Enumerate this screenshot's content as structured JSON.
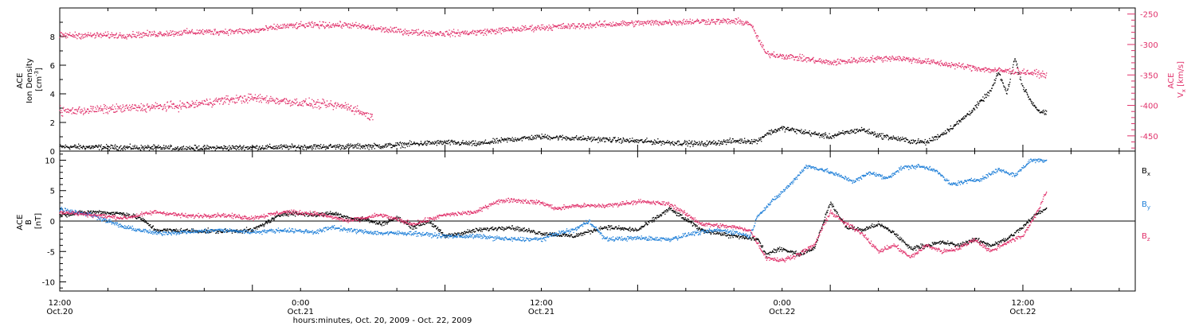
{
  "colors": {
    "black": "#000000",
    "blue": "#1f7fd8",
    "red": "#e0306a"
  },
  "chart_data": [
    {
      "type": "scatter",
      "panel": "top",
      "left_axis": {
        "label_lines": [
          "ACE",
          "Ion Density"
        ],
        "unit_prefix": "[cm",
        "unit_sup": "-3",
        "unit_suffix": "]",
        "ylim": [
          0,
          10
        ],
        "ticks": [
          "0",
          "2",
          "4",
          "6",
          "8"
        ]
      },
      "right_axis": {
        "label_lines": [
          "ACE"
        ],
        "sym": "V",
        "sym_sub": "x",
        "unit": " [km/s]",
        "ylim": [
          -475,
          -240
        ],
        "ticks": [
          "-250",
          "-300",
          "-350",
          "-400",
          "-450"
        ],
        "tick_values": [
          -250,
          -300,
          -350,
          -400,
          -450
        ],
        "color": "#e0306a"
      },
      "series": [
        {
          "axis": "left",
          "color": "#000000",
          "spread": 0.18,
          "points": [
            [
              0,
              0.3
            ],
            [
              4,
              0.25
            ],
            [
              8,
              0.2
            ],
            [
              12,
              0.25
            ],
            [
              16,
              0.3
            ],
            [
              20,
              0.35
            ],
            [
              22,
              0.5
            ],
            [
              24,
              0.6
            ],
            [
              26,
              0.5
            ],
            [
              28,
              0.8
            ],
            [
              30,
              1.0
            ],
            [
              32,
              0.9
            ],
            [
              34,
              0.8
            ],
            [
              36,
              0.7
            ],
            [
              38,
              0.6
            ],
            [
              40,
              0.5
            ],
            [
              42,
              0.7
            ],
            [
              43.5,
              0.7
            ],
            [
              44,
              1.2
            ],
            [
              45,
              1.6
            ],
            [
              46,
              1.4
            ],
            [
              47,
              1.2
            ],
            [
              48,
              1.0
            ],
            [
              49,
              1.3
            ],
            [
              50,
              1.5
            ],
            [
              51,
              1.1
            ],
            [
              52,
              0.9
            ],
            [
              53,
              0.7
            ],
            [
              54,
              0.6
            ],
            [
              55,
              1.2
            ],
            [
              56,
              2.0
            ],
            [
              57,
              3.0
            ],
            [
              58,
              4.2
            ],
            [
              58.5,
              5.5
            ],
            [
              59,
              4.0
            ],
            [
              59.5,
              6.5
            ],
            [
              60,
              4.5
            ],
            [
              60.5,
              3.5
            ],
            [
              61,
              2.8
            ],
            [
              61.5,
              2.6
            ]
          ]
        },
        {
          "axis": "right",
          "color": "#e0306a",
          "spread": 5,
          "points": [
            [
              0,
              -285
            ],
            [
              4,
              -285
            ],
            [
              8,
              -280
            ],
            [
              12,
              -278
            ],
            [
              14,
              -270
            ],
            [
              16,
              -268
            ],
            [
              18,
              -268
            ],
            [
              20,
              -275
            ],
            [
              22,
              -280
            ],
            [
              24,
              -282
            ],
            [
              26,
              -280
            ],
            [
              28,
              -276
            ],
            [
              30,
              -272
            ],
            [
              32,
              -270
            ],
            [
              34,
              -267
            ],
            [
              36,
              -265
            ],
            [
              40,
              -262
            ],
            [
              42,
              -262
            ],
            [
              43,
              -265
            ],
            [
              43.3,
              -280
            ],
            [
              44,
              -315
            ],
            [
              46,
              -322
            ],
            [
              48,
              -330
            ],
            [
              50,
              -325
            ],
            [
              52,
              -322
            ],
            [
              54,
              -328
            ],
            [
              56,
              -335
            ],
            [
              58,
              -342
            ],
            [
              60,
              -345
            ],
            [
              61.5,
              -350
            ]
          ]
        },
        {
          "axis": "right",
          "color": "#e0306a",
          "spread": 7,
          "points": [
            [
              0,
              -410
            ],
            [
              4,
              -405
            ],
            [
              8,
              -400
            ],
            [
              10,
              -392
            ],
            [
              12,
              -388
            ],
            [
              14,
              -393
            ],
            [
              16,
              -398
            ],
            [
              18,
              -402
            ],
            [
              19.5,
              -420
            ]
          ]
        }
      ]
    },
    {
      "type": "scatter",
      "panel": "bottom",
      "left_axis": {
        "label_lines": [
          "ACE",
          "B"
        ],
        "unit": "[nT]",
        "ylim": [
          -11.5,
          11.5
        ],
        "ticks": [
          "10",
          "5",
          "0",
          "-5",
          "-10"
        ],
        "tick_values": [
          10,
          5,
          0,
          -5,
          -10
        ]
      },
      "x_axis": {
        "xlim": [
          0,
          67
        ],
        "tick_labels": [
          {
            "x": 0,
            "top": "12:00",
            "bottom": "Oct.20"
          },
          {
            "x": 15,
            "top": "0:00",
            "bottom": "Oct.21"
          },
          {
            "x": 30,
            "top": "12:00",
            "bottom": "Oct.21"
          },
          {
            "x": 45,
            "top": "0:00",
            "bottom": "Oct.22"
          },
          {
            "x": 60,
            "top": "12:00",
            "bottom": "Oct.22"
          }
        ],
        "label": "hours:minutes, Oct. 20, 2009 - Oct. 22, 2009"
      },
      "legend": [
        {
          "sym": "B",
          "sub": "x",
          "color": "#000000"
        },
        {
          "sym": "B",
          "sub": "y",
          "color": "#1f7fd8"
        },
        {
          "sym": "B",
          "sub": "z",
          "color": "#e0306a"
        }
      ],
      "series": [
        {
          "color": "#000000",
          "spread": 0.35,
          "points": [
            [
              0,
              1
            ],
            [
              2,
              1.5
            ],
            [
              4,
              1.2
            ],
            [
              5,
              0.5
            ],
            [
              6,
              -1.5
            ],
            [
              8,
              -1.6
            ],
            [
              10,
              -1.7
            ],
            [
              12,
              -1.5
            ],
            [
              14,
              1.3
            ],
            [
              16,
              1.0
            ],
            [
              17,
              1.3
            ],
            [
              18,
              0.5
            ],
            [
              19,
              0.3
            ],
            [
              20,
              -0.5
            ],
            [
              21,
              0.5
            ],
            [
              22,
              -1.0
            ],
            [
              23,
              0.0
            ],
            [
              24,
              -2.5
            ],
            [
              26,
              -1.5
            ],
            [
              28,
              -1.0
            ],
            [
              30,
              -2.0
            ],
            [
              32,
              -2.5
            ],
            [
              34,
              -1.0
            ],
            [
              36,
              -1.5
            ],
            [
              38,
              2.0
            ],
            [
              40,
              -1.5
            ],
            [
              42,
              -2.5
            ],
            [
              43.5,
              -3.0
            ],
            [
              44,
              -5.5
            ],
            [
              45,
              -4.5
            ],
            [
              46,
              -5.5
            ],
            [
              47,
              -4.5
            ],
            [
              48,
              3.0
            ],
            [
              49,
              -1.0
            ],
            [
              50,
              -1.5
            ],
            [
              51,
              -0.5
            ],
            [
              52,
              -2.0
            ],
            [
              53,
              -4.5
            ],
            [
              54,
              -4.0
            ],
            [
              55,
              -3.5
            ],
            [
              56,
              -4.0
            ],
            [
              57,
              -3.0
            ],
            [
              58,
              -4.0
            ],
            [
              59,
              -3.0
            ],
            [
              60,
              -1.0
            ],
            [
              61,
              1.5
            ],
            [
              61.5,
              2.0
            ]
          ]
        },
        {
          "color": "#1f7fd8",
          "spread": 0.35,
          "points": [
            [
              0,
              2.0
            ],
            [
              2,
              1.0
            ],
            [
              4,
              -1.0
            ],
            [
              6,
              -2.0
            ],
            [
              8,
              -1.8
            ],
            [
              10,
              -1.5
            ],
            [
              12,
              -1.8
            ],
            [
              14,
              -1.5
            ],
            [
              16,
              -1.8
            ],
            [
              17,
              -1.0
            ],
            [
              18,
              -1.5
            ],
            [
              20,
              -2.0
            ],
            [
              22,
              -2.0
            ],
            [
              24,
              -2.5
            ],
            [
              26,
              -2.5
            ],
            [
              28,
              -3.0
            ],
            [
              30,
              -3.0
            ],
            [
              31,
              -2.0
            ],
            [
              32,
              -1.5
            ],
            [
              33,
              0.0
            ],
            [
              34,
              -3.0
            ],
            [
              36,
              -2.8
            ],
            [
              38,
              -3.0
            ],
            [
              39.5,
              -2.0
            ],
            [
              41,
              -1.5
            ],
            [
              42,
              -1.8
            ],
            [
              43,
              -2.5
            ],
            [
              43.5,
              1.0
            ],
            [
              44.5,
              3.5
            ],
            [
              45.5,
              6.0
            ],
            [
              46.5,
              9.0
            ],
            [
              47.5,
              8.5
            ],
            [
              48.5,
              7.5
            ],
            [
              49.5,
              6.5
            ],
            [
              50.5,
              8.0
            ],
            [
              51.5,
              7.0
            ],
            [
              52.5,
              8.8
            ],
            [
              53.5,
              9.0
            ],
            [
              54.5,
              8.5
            ],
            [
              55.5,
              6.0
            ],
            [
              56.5,
              6.5
            ],
            [
              57.5,
              7.0
            ],
            [
              58.5,
              8.5
            ],
            [
              59.5,
              7.5
            ],
            [
              60.5,
              10.0
            ],
            [
              61.5,
              10.0
            ]
          ]
        },
        {
          "color": "#e0306a",
          "spread": 0.35,
          "points": [
            [
              0,
              1.5
            ],
            [
              2,
              1.0
            ],
            [
              4,
              0.5
            ],
            [
              6,
              1.5
            ],
            [
              8,
              0.8
            ],
            [
              10,
              1.0
            ],
            [
              12,
              0.5
            ],
            [
              14,
              1.5
            ],
            [
              16,
              1.2
            ],
            [
              18,
              0.0
            ],
            [
              20,
              1.0
            ],
            [
              22,
              -0.5
            ],
            [
              24,
              1.0
            ],
            [
              26,
              1.5
            ],
            [
              27,
              3.0
            ],
            [
              28,
              3.5
            ],
            [
              30,
              3.0
            ],
            [
              31,
              2.0
            ],
            [
              32,
              2.5
            ],
            [
              34,
              2.5
            ],
            [
              36,
              3.2
            ],
            [
              38,
              2.8
            ],
            [
              40,
              -0.5
            ],
            [
              42,
              -1.0
            ],
            [
              43,
              -1.5
            ],
            [
              44,
              -6.0
            ],
            [
              45,
              -6.5
            ],
            [
              46,
              -5.5
            ],
            [
              47,
              -4.0
            ],
            [
              48,
              1.5
            ],
            [
              49,
              -0.5
            ],
            [
              50,
              -2.0
            ],
            [
              51,
              -5.0
            ],
            [
              52,
              -4.0
            ],
            [
              53,
              -6.0
            ],
            [
              54,
              -4.0
            ],
            [
              55,
              -5.0
            ],
            [
              56,
              -4.5
            ],
            [
              57,
              -3.0
            ],
            [
              58,
              -5.0
            ],
            [
              59,
              -3.5
            ],
            [
              60,
              -2.5
            ],
            [
              61,
              2.0
            ],
            [
              61.5,
              5.0
            ]
          ]
        }
      ]
    }
  ]
}
